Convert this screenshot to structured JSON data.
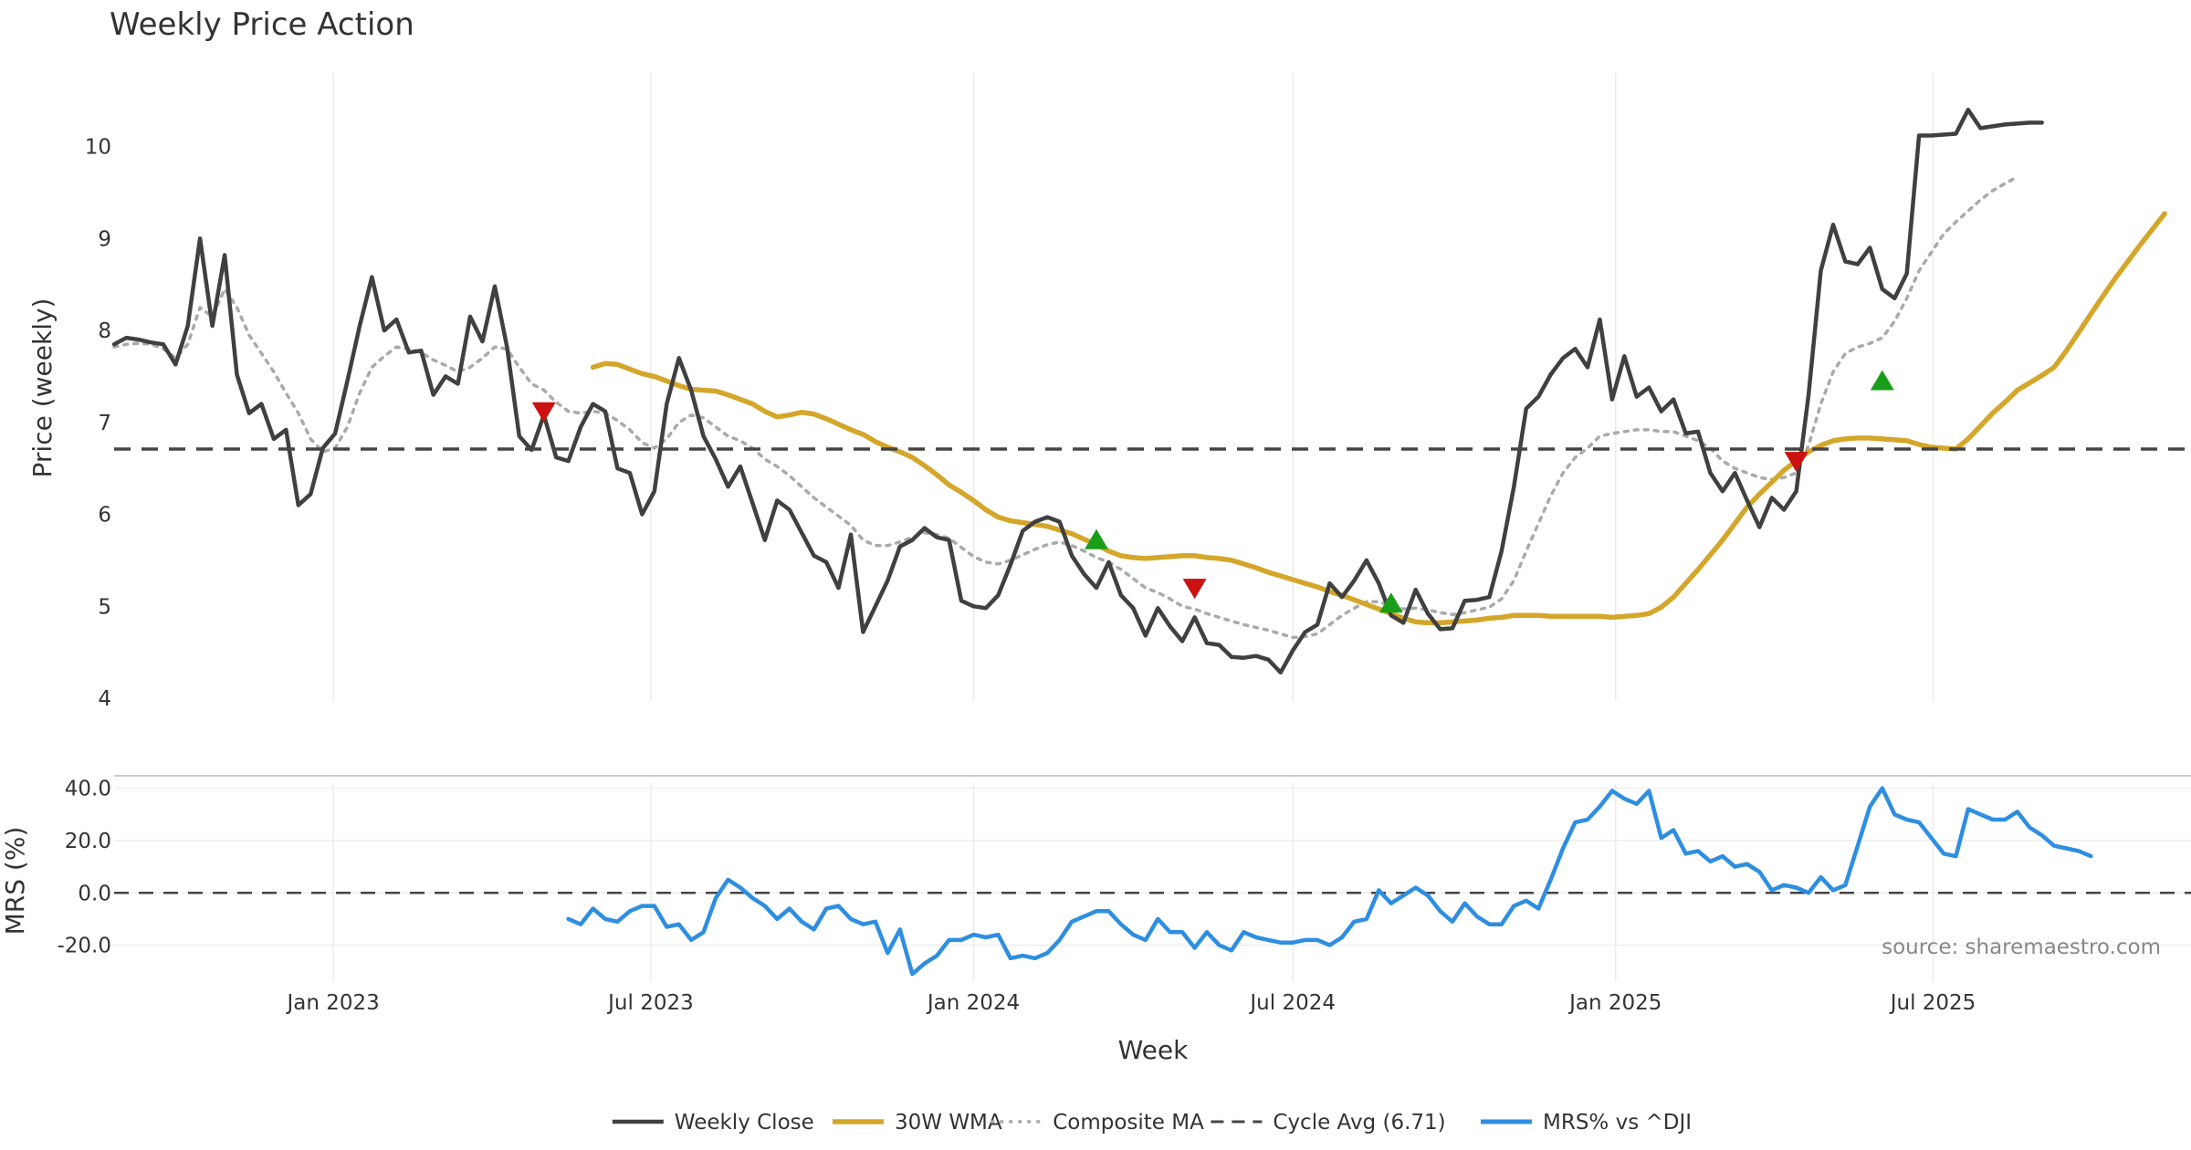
{
  "chart_data": [
    {
      "type": "line",
      "title": "Weekly Price Action",
      "ylabel": "Price (weekly)",
      "ylim": [
        4,
        10.8
      ],
      "yticks": [
        "4",
        "5",
        "6",
        "7",
        "8",
        "9",
        "10"
      ],
      "grid": true,
      "x_start": "2022-08-29",
      "x_step_days": 7,
      "series": [
        {
          "name": "Weekly Close",
          "color": "#404040",
          "values": [
            7.85,
            7.92,
            7.9,
            7.87,
            7.85,
            7.63,
            8.05,
            9.0,
            8.05,
            8.82,
            7.52,
            7.1,
            7.2,
            6.82,
            6.92,
            6.1,
            6.22,
            6.72,
            6.88,
            7.45,
            8.05,
            8.58,
            8.0,
            8.12,
            7.76,
            7.78,
            7.3,
            7.5,
            7.42,
            8.15,
            7.88,
            8.48,
            7.82,
            6.85,
            6.7,
            7.08,
            6.62,
            6.58,
            6.95,
            7.2,
            7.12,
            6.5,
            6.45,
            6.0,
            6.25,
            7.2,
            7.7,
            7.35,
            6.85,
            6.6,
            6.3,
            6.52,
            6.12,
            5.72,
            6.15,
            6.05,
            5.8,
            5.55,
            5.48,
            5.2,
            5.78,
            4.72,
            5.0,
            5.28,
            5.65,
            5.72,
            5.85,
            5.75,
            5.72,
            5.06,
            5.0,
            4.98,
            5.12,
            5.45,
            5.82,
            5.92,
            5.97,
            5.92,
            5.55,
            5.35,
            5.2,
            5.48,
            5.12,
            4.98,
            4.68,
            4.98,
            4.78,
            4.62,
            4.88,
            4.6,
            4.58,
            4.45,
            4.44,
            4.46,
            4.42,
            4.28,
            4.52,
            4.72,
            4.8,
            5.25,
            5.1,
            5.28,
            5.5,
            5.25,
            4.9,
            4.82,
            5.18,
            4.92,
            4.75,
            4.76,
            5.06,
            5.07,
            5.1,
            5.6,
            6.3,
            7.15,
            7.28,
            7.52,
            7.7,
            7.8,
            7.6,
            8.12,
            7.25,
            7.72,
            7.28,
            7.38,
            7.12,
            7.25,
            6.88,
            6.9,
            6.45,
            6.25,
            6.45,
            6.15,
            5.86,
            6.18,
            6.05,
            6.25,
            7.3,
            8.65,
            9.15,
            8.75,
            8.72,
            8.9,
            8.45,
            8.35,
            8.62,
            10.12,
            10.12,
            10.13,
            10.14,
            10.4,
            10.2,
            10.22,
            10.24,
            10.25,
            10.26,
            10.26
          ]
        },
        {
          "name": "30W WMA",
          "color": "#d4a62a",
          "start_index": 39,
          "values": [
            7.6,
            7.64,
            7.63,
            7.58,
            7.53,
            7.5,
            7.45,
            7.4,
            7.36,
            7.35,
            7.34,
            7.3,
            7.25,
            7.2,
            7.12,
            7.06,
            7.08,
            7.11,
            7.09,
            7.04,
            6.98,
            6.92,
            6.87,
            6.79,
            6.73,
            6.68,
            6.62,
            6.53,
            6.43,
            6.32,
            6.24,
            6.15,
            6.05,
            5.97,
            5.93,
            5.91,
            5.89,
            5.87,
            5.83,
            5.79,
            5.73,
            5.67,
            5.6,
            5.55,
            5.53,
            5.52,
            5.53,
            5.54,
            5.55,
            5.55,
            5.53,
            5.52,
            5.5,
            5.46,
            5.42,
            5.37,
            5.33,
            5.29,
            5.25,
            5.21,
            5.16,
            5.12,
            5.07,
            5.02,
            4.97,
            4.92,
            4.87,
            4.83,
            4.82,
            4.82,
            4.83,
            4.84,
            4.85,
            4.87,
            4.88,
            4.9,
            4.9,
            4.9,
            4.89,
            4.89,
            4.89,
            4.89,
            4.89,
            4.88,
            4.89,
            4.9,
            4.92,
            4.99,
            5.1,
            5.25,
            5.4,
            5.56,
            5.72,
            5.9,
            6.08,
            6.22,
            6.35,
            6.48,
            6.58,
            6.68,
            6.75,
            6.8,
            6.82,
            6.83,
            6.83,
            6.82,
            6.81,
            6.8,
            6.76,
            6.73,
            6.72,
            6.71,
            6.82,
            6.96,
            7.1,
            7.22,
            7.35,
            7.43,
            7.51,
            7.6,
            7.78,
            7.98,
            8.18,
            8.38,
            8.57,
            8.75,
            8.93,
            9.1,
            9.27
          ]
        },
        {
          "name": "Composite MA",
          "color": "#aaaaaa",
          "values": [
            7.82,
            7.85,
            7.86,
            7.85,
            7.8,
            7.7,
            7.85,
            8.25,
            8.15,
            8.45,
            8.25,
            7.95,
            7.75,
            7.55,
            7.32,
            7.1,
            6.82,
            6.68,
            6.72,
            6.95,
            7.32,
            7.6,
            7.72,
            7.82,
            7.8,
            7.76,
            7.68,
            7.62,
            7.55,
            7.6,
            7.7,
            7.82,
            7.8,
            7.6,
            7.42,
            7.35,
            7.22,
            7.12,
            7.1,
            7.12,
            7.1,
            7.02,
            6.92,
            6.78,
            6.72,
            6.82,
            7.0,
            7.08,
            7.05,
            6.95,
            6.85,
            6.8,
            6.72,
            6.6,
            6.52,
            6.42,
            6.3,
            6.18,
            6.08,
            5.98,
            5.88,
            5.72,
            5.66,
            5.66,
            5.7,
            5.75,
            5.8,
            5.78,
            5.74,
            5.64,
            5.54,
            5.48,
            5.46,
            5.5,
            5.56,
            5.62,
            5.67,
            5.7,
            5.66,
            5.6,
            5.53,
            5.48,
            5.4,
            5.3,
            5.2,
            5.15,
            5.08,
            5.0,
            4.97,
            4.92,
            4.88,
            4.84,
            4.8,
            4.77,
            4.74,
            4.7,
            4.66,
            4.67,
            4.7,
            4.8,
            4.9,
            4.98,
            5.05,
            5.05,
            5.0,
            4.97,
            4.98,
            4.96,
            4.93,
            4.91,
            4.93,
            4.96,
            4.99,
            5.08,
            5.28,
            5.6,
            5.9,
            6.2,
            6.45,
            6.62,
            6.72,
            6.85,
            6.88,
            6.9,
            6.92,
            6.92,
            6.9,
            6.9,
            6.85,
            6.8,
            6.72,
            6.58,
            6.5,
            6.45,
            6.4,
            6.38,
            6.4,
            6.45,
            6.75,
            7.2,
            7.55,
            7.75,
            7.82,
            7.86,
            7.92,
            8.1,
            8.35,
            8.65,
            8.85,
            9.05,
            9.18,
            9.3,
            9.42,
            9.52,
            9.6,
            9.67
          ]
        },
        {
          "name": "Cycle Avg (6.71)",
          "color": "#444444",
          "dashed": true,
          "constant": 6.71
        }
      ],
      "signals_up": [
        {
          "date": "2024-03-11",
          "y": 5.72
        },
        {
          "date": "2024-08-26",
          "y": 5.03
        },
        {
          "date": "2025-06-02",
          "y": 7.45
        }
      ],
      "signals_down": [
        {
          "date": "2023-05-01",
          "y": 7.12
        },
        {
          "date": "2024-05-06",
          "y": 5.2
        },
        {
          "date": "2025-04-14",
          "y": 6.58
        }
      ]
    },
    {
      "type": "line",
      "ylabel": "MRS (%)",
      "ylim": [
        -32,
        43
      ],
      "yticks": [
        "40.0",
        "20.0",
        "0.0",
        "-20.0"
      ],
      "xlabel": "Week",
      "xticks": [
        {
          "date": "2023-01-01",
          "label": "Jan 2023"
        },
        {
          "date": "2023-07-01",
          "label": "Jul 2023"
        },
        {
          "date": "2024-01-01",
          "label": "Jan 2024"
        },
        {
          "date": "2024-07-01",
          "label": "Jul 2024"
        },
        {
          "date": "2025-01-01",
          "label": "Jan 2025"
        },
        {
          "date": "2025-07-01",
          "label": "Jul 2025"
        }
      ],
      "annotation": "source: sharemaestro.com",
      "zero_line": true,
      "series": [
        {
          "name": "MRS% vs ^DJI",
          "color": "#2e8ee0",
          "start_index": 37,
          "values": [
            -10,
            -12,
            -6,
            -10,
            -11,
            -7,
            -5,
            -5,
            -13,
            -12,
            -18,
            -15,
            -2,
            5,
            2,
            -2,
            -5,
            -10,
            -6,
            -11,
            -14,
            -6,
            -5,
            -10,
            -12,
            -11,
            -23,
            -14,
            -31,
            -27,
            -24,
            -18,
            -18,
            -16,
            -17,
            -16,
            -25,
            -24,
            -25,
            -23,
            -18,
            -11,
            -9,
            -7,
            -7,
            -12,
            -16,
            -18,
            -10,
            -15,
            -15,
            -21,
            -15,
            -20,
            -22,
            -15,
            -17,
            -18,
            -19,
            -19,
            -18,
            -18,
            -20,
            -17,
            -11,
            -10,
            1,
            -4,
            -1,
            2,
            -1,
            -7,
            -11,
            -4,
            -9,
            -12,
            -12,
            -5,
            -3,
            -6,
            5,
            17,
            27,
            28,
            33,
            39,
            36,
            34,
            39,
            21,
            24,
            15,
            16,
            12,
            14,
            10,
            11,
            8,
            1,
            3,
            2,
            0,
            6,
            1,
            3,
            18,
            33,
            40,
            30,
            28,
            27,
            21,
            15,
            14,
            32,
            30,
            28,
            28,
            31,
            25,
            22,
            18,
            17,
            16,
            14
          ]
        }
      ]
    }
  ]
}
